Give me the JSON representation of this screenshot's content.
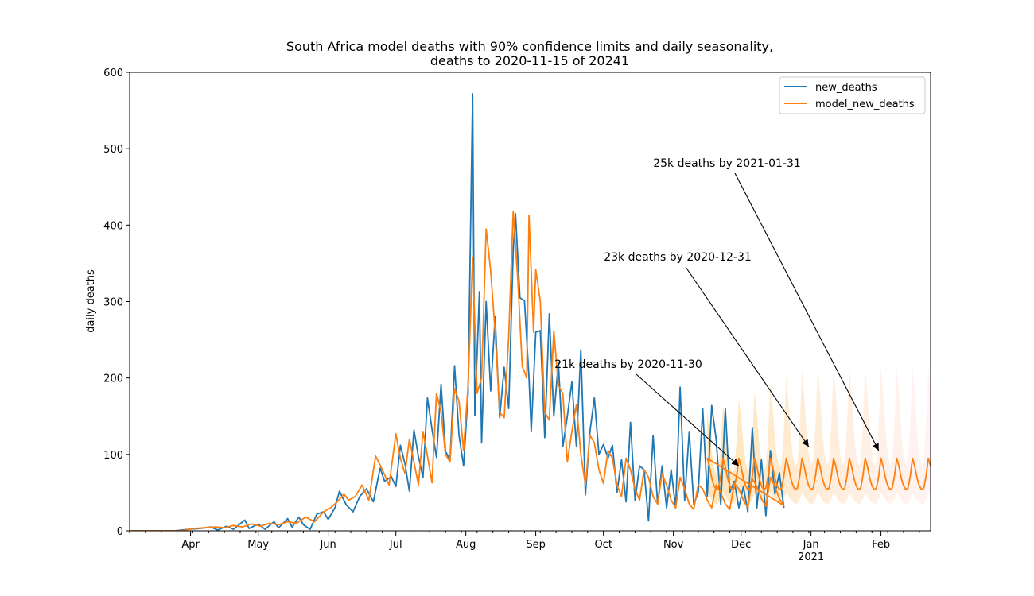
{
  "chart_data": {
    "type": "line",
    "title": "South Africa model deaths with 90% confidence limits and daily seasonality,",
    "subtitle": "deaths to 2020-11-15 of 20241",
    "xlabel": "",
    "ylabel": "daily deaths",
    "x_range": [
      "2020-03-05",
      "2021-02-23"
    ],
    "ylim": [
      0,
      600
    ],
    "y_ticks": [
      0,
      100,
      200,
      300,
      400,
      500,
      600
    ],
    "x_ticks": [
      {
        "date": "2020-04-01",
        "label": "Apr",
        "sublabel": ""
      },
      {
        "date": "2020-05-01",
        "label": "May",
        "sublabel": ""
      },
      {
        "date": "2020-06-01",
        "label": "Jun",
        "sublabel": ""
      },
      {
        "date": "2020-07-01",
        "label": "Jul",
        "sublabel": ""
      },
      {
        "date": "2020-08-01",
        "label": "Aug",
        "sublabel": ""
      },
      {
        "date": "2020-09-01",
        "label": "Sep",
        "sublabel": ""
      },
      {
        "date": "2020-10-01",
        "label": "Oct",
        "sublabel": ""
      },
      {
        "date": "2020-11-01",
        "label": "Nov",
        "sublabel": ""
      },
      {
        "date": "2020-12-01",
        "label": "Dec",
        "sublabel": ""
      },
      {
        "date": "2021-01-01",
        "label": "Jan",
        "sublabel": "2021"
      },
      {
        "date": "2021-02-01",
        "label": "Feb",
        "sublabel": ""
      }
    ],
    "grid": false,
    "legend_position": "top-right",
    "series": [
      {
        "name": "new_deaths",
        "color": "#1f77b4",
        "points": [
          [
            "2020-03-05",
            0
          ],
          [
            "2020-03-25",
            0
          ],
          [
            "2020-03-31",
            2
          ],
          [
            "2020-04-05",
            3
          ],
          [
            "2020-04-10",
            5
          ],
          [
            "2020-04-13",
            1
          ],
          [
            "2020-04-17",
            6
          ],
          [
            "2020-04-20",
            2
          ],
          [
            "2020-04-25",
            14
          ],
          [
            "2020-04-27",
            3
          ],
          [
            "2020-05-01",
            9
          ],
          [
            "2020-05-04",
            2
          ],
          [
            "2020-05-08",
            12
          ],
          [
            "2020-05-10",
            4
          ],
          [
            "2020-05-14",
            16
          ],
          [
            "2020-05-16",
            5
          ],
          [
            "2020-05-19",
            18
          ],
          [
            "2020-05-21",
            8
          ],
          [
            "2020-05-24",
            2
          ],
          [
            "2020-05-27",
            22
          ],
          [
            "2020-05-30",
            25
          ],
          [
            "2020-06-01",
            15
          ],
          [
            "2020-06-04",
            30
          ],
          [
            "2020-06-06",
            52
          ],
          [
            "2020-06-09",
            34
          ],
          [
            "2020-06-12",
            25
          ],
          [
            "2020-06-15",
            45
          ],
          [
            "2020-06-18",
            55
          ],
          [
            "2020-06-21",
            38
          ],
          [
            "2020-06-24",
            82
          ],
          [
            "2020-06-26",
            65
          ],
          [
            "2020-06-29",
            71
          ],
          [
            "2020-07-01",
            58
          ],
          [
            "2020-07-03",
            112
          ],
          [
            "2020-07-05",
            88
          ],
          [
            "2020-07-07",
            52
          ],
          [
            "2020-07-09",
            132
          ],
          [
            "2020-07-11",
            97
          ],
          [
            "2020-07-13",
            70
          ],
          [
            "2020-07-15",
            174
          ],
          [
            "2020-07-17",
            133
          ],
          [
            "2020-07-19",
            96
          ],
          [
            "2020-07-21",
            192
          ],
          [
            "2020-07-23",
            104
          ],
          [
            "2020-07-25",
            93
          ],
          [
            "2020-07-27",
            216
          ],
          [
            "2020-07-29",
            125
          ],
          [
            "2020-07-31",
            85
          ],
          [
            "2020-08-02",
            180
          ],
          [
            "2020-08-04",
            572
          ],
          [
            "2020-08-05",
            151
          ],
          [
            "2020-08-07",
            313
          ],
          [
            "2020-08-08",
            115
          ],
          [
            "2020-08-10",
            300
          ],
          [
            "2020-08-12",
            183
          ],
          [
            "2020-08-14",
            280
          ],
          [
            "2020-08-16",
            148
          ],
          [
            "2020-08-18",
            214
          ],
          [
            "2020-08-20",
            160
          ],
          [
            "2020-08-22",
            366
          ],
          [
            "2020-08-23",
            415
          ],
          [
            "2020-08-25",
            305
          ],
          [
            "2020-08-27",
            301
          ],
          [
            "2020-08-29",
            200
          ],
          [
            "2020-08-30",
            130
          ],
          [
            "2020-09-01",
            260
          ],
          [
            "2020-09-03",
            262
          ],
          [
            "2020-09-05",
            122
          ],
          [
            "2020-09-07",
            284
          ],
          [
            "2020-09-09",
            150
          ],
          [
            "2020-09-11",
            220
          ],
          [
            "2020-09-13",
            110
          ],
          [
            "2020-09-15",
            150
          ],
          [
            "2020-09-17",
            195
          ],
          [
            "2020-09-19",
            110
          ],
          [
            "2020-09-21",
            237
          ],
          [
            "2020-09-23",
            47
          ],
          [
            "2020-09-25",
            130
          ],
          [
            "2020-09-27",
            174
          ],
          [
            "2020-09-29",
            100
          ],
          [
            "2020-10-01",
            113
          ],
          [
            "2020-10-03",
            95
          ],
          [
            "2020-10-05",
            112
          ],
          [
            "2020-10-07",
            50
          ],
          [
            "2020-10-09",
            93
          ],
          [
            "2020-10-11",
            38
          ],
          [
            "2020-10-13",
            142
          ],
          [
            "2020-10-15",
            40
          ],
          [
            "2020-10-17",
            85
          ],
          [
            "2020-10-19",
            80
          ],
          [
            "2020-10-21",
            13
          ],
          [
            "2020-10-23",
            125
          ],
          [
            "2020-10-25",
            35
          ],
          [
            "2020-10-27",
            85
          ],
          [
            "2020-10-29",
            30
          ],
          [
            "2020-10-31",
            80
          ],
          [
            "2020-11-02",
            30
          ],
          [
            "2020-11-04",
            188
          ],
          [
            "2020-11-06",
            40
          ],
          [
            "2020-11-08",
            130
          ],
          [
            "2020-11-10",
            35
          ],
          [
            "2020-11-12",
            50
          ],
          [
            "2020-11-14",
            160
          ],
          [
            "2020-11-16",
            45
          ],
          [
            "2020-11-18",
            164
          ],
          [
            "2020-11-20",
            119
          ],
          [
            "2020-11-22",
            34
          ],
          [
            "2020-11-24",
            160
          ],
          [
            "2020-11-26",
            50
          ],
          [
            "2020-11-28",
            65
          ],
          [
            "2020-11-30",
            30
          ],
          [
            "2020-12-02",
            58
          ],
          [
            "2020-12-04",
            25
          ],
          [
            "2020-12-06",
            135
          ],
          [
            "2020-12-08",
            30
          ],
          [
            "2020-12-10",
            93
          ],
          [
            "2020-12-12",
            20
          ],
          [
            "2020-12-14",
            105
          ],
          [
            "2020-12-16",
            48
          ],
          [
            "2020-12-18",
            76
          ],
          [
            "2020-12-20",
            30
          ]
        ]
      },
      {
        "name": "model_new_deaths",
        "color": "#ff7f0e",
        "points": [
          [
            "2020-03-05",
            0
          ],
          [
            "2020-03-28",
            0
          ],
          [
            "2020-04-02",
            3
          ],
          [
            "2020-04-07",
            4
          ],
          [
            "2020-04-12",
            5
          ],
          [
            "2020-04-16",
            4
          ],
          [
            "2020-04-20",
            7
          ],
          [
            "2020-04-24",
            5
          ],
          [
            "2020-04-28",
            9
          ],
          [
            "2020-05-02",
            6
          ],
          [
            "2020-05-06",
            10
          ],
          [
            "2020-05-10",
            8
          ],
          [
            "2020-05-14",
            12
          ],
          [
            "2020-05-18",
            10
          ],
          [
            "2020-05-22",
            18
          ],
          [
            "2020-05-26",
            12
          ],
          [
            "2020-05-30",
            25
          ],
          [
            "2020-06-02",
            30
          ],
          [
            "2020-06-05",
            38
          ],
          [
            "2020-06-08",
            48
          ],
          [
            "2020-06-10",
            40
          ],
          [
            "2020-06-13",
            45
          ],
          [
            "2020-06-16",
            60
          ],
          [
            "2020-06-19",
            40
          ],
          [
            "2020-06-22",
            98
          ],
          [
            "2020-06-25",
            80
          ],
          [
            "2020-06-28",
            60
          ],
          [
            "2020-07-01",
            127
          ],
          [
            "2020-07-03",
            95
          ],
          [
            "2020-07-05",
            75
          ],
          [
            "2020-07-07",
            120
          ],
          [
            "2020-07-09",
            90
          ],
          [
            "2020-07-11",
            60
          ],
          [
            "2020-07-13",
            130
          ],
          [
            "2020-07-15",
            98
          ],
          [
            "2020-07-17",
            63
          ],
          [
            "2020-07-19",
            180
          ],
          [
            "2020-07-21",
            155
          ],
          [
            "2020-07-23",
            100
          ],
          [
            "2020-07-25",
            90
          ],
          [
            "2020-07-27",
            186
          ],
          [
            "2020-07-29",
            170
          ],
          [
            "2020-07-31",
            105
          ],
          [
            "2020-08-02",
            190
          ],
          [
            "2020-08-04",
            358
          ],
          [
            "2020-08-06",
            180
          ],
          [
            "2020-08-08",
            200
          ],
          [
            "2020-08-10",
            395
          ],
          [
            "2020-08-12",
            340
          ],
          [
            "2020-08-14",
            260
          ],
          [
            "2020-08-16",
            155
          ],
          [
            "2020-08-18",
            148
          ],
          [
            "2020-08-20",
            255
          ],
          [
            "2020-08-22",
            418
          ],
          [
            "2020-08-24",
            330
          ],
          [
            "2020-08-26",
            215
          ],
          [
            "2020-08-28",
            200
          ],
          [
            "2020-08-29",
            413
          ],
          [
            "2020-08-31",
            260
          ],
          [
            "2020-09-01",
            342
          ],
          [
            "2020-09-03",
            300
          ],
          [
            "2020-09-05",
            155
          ],
          [
            "2020-09-07",
            145
          ],
          [
            "2020-09-09",
            262
          ],
          [
            "2020-09-11",
            190
          ],
          [
            "2020-09-13",
            180
          ],
          [
            "2020-09-15",
            90
          ],
          [
            "2020-09-17",
            130
          ],
          [
            "2020-09-19",
            165
          ],
          [
            "2020-09-21",
            100
          ],
          [
            "2020-09-23",
            60
          ],
          [
            "2020-09-25",
            125
          ],
          [
            "2020-09-27",
            115
          ],
          [
            "2020-09-29",
            80
          ],
          [
            "2020-10-01",
            62
          ],
          [
            "2020-10-03",
            105
          ],
          [
            "2020-10-05",
            95
          ],
          [
            "2020-10-07",
            60
          ],
          [
            "2020-10-09",
            45
          ],
          [
            "2020-10-11",
            95
          ],
          [
            "2020-10-13",
            80
          ],
          [
            "2020-10-15",
            55
          ],
          [
            "2020-10-17",
            40
          ],
          [
            "2020-10-19",
            80
          ],
          [
            "2020-10-21",
            70
          ],
          [
            "2020-10-23",
            45
          ],
          [
            "2020-10-25",
            35
          ],
          [
            "2020-10-27",
            75
          ],
          [
            "2020-10-29",
            60
          ],
          [
            "2020-10-31",
            40
          ],
          [
            "2020-11-02",
            30
          ],
          [
            "2020-11-04",
            70
          ],
          [
            "2020-11-06",
            55
          ],
          [
            "2020-11-08",
            35
          ],
          [
            "2020-11-10",
            28
          ],
          [
            "2020-11-12",
            60
          ],
          [
            "2020-11-14",
            55
          ],
          [
            "2020-11-16",
            40
          ],
          [
            "2020-11-18",
            30
          ],
          [
            "2020-11-20",
            60
          ],
          [
            "2020-11-22",
            50
          ],
          [
            "2020-11-24",
            35
          ],
          [
            "2020-11-26",
            28
          ],
          [
            "2020-11-28",
            62
          ],
          [
            "2020-11-30",
            55
          ],
          [
            "2020-12-02",
            40
          ],
          [
            "2020-12-04",
            30
          ],
          [
            "2020-12-06",
            68
          ],
          [
            "2020-12-08",
            58
          ],
          [
            "2020-12-10",
            42
          ],
          [
            "2020-12-12",
            32
          ],
          [
            "2020-12-14",
            70
          ],
          [
            "2020-12-16",
            58
          ],
          [
            "2020-12-18",
            42
          ],
          [
            "2020-12-20",
            33
          ]
        ]
      }
    ],
    "forecast": {
      "start": "2020-11-16",
      "end": "2021-02-23",
      "period_days": 7,
      "median_peak": 95,
      "median_trough": 43,
      "upper_peak_start": 155,
      "upper_peak_end": 215,
      "upper_trough": 50,
      "lower_trough": 25,
      "band_color_start": "#ffe0a8",
      "band_color_end": "#ffeaea"
    },
    "annotations": [
      {
        "text": "21k deaths by 2020-11-30",
        "target_date": "2020-11-30",
        "target_value": 85
      },
      {
        "text": "23k deaths by 2020-12-31",
        "target_date": "2020-12-31",
        "target_value": 110
      },
      {
        "text": "25k deaths by 2021-01-31",
        "target_date": "2021-01-31",
        "target_value": 105
      }
    ]
  }
}
